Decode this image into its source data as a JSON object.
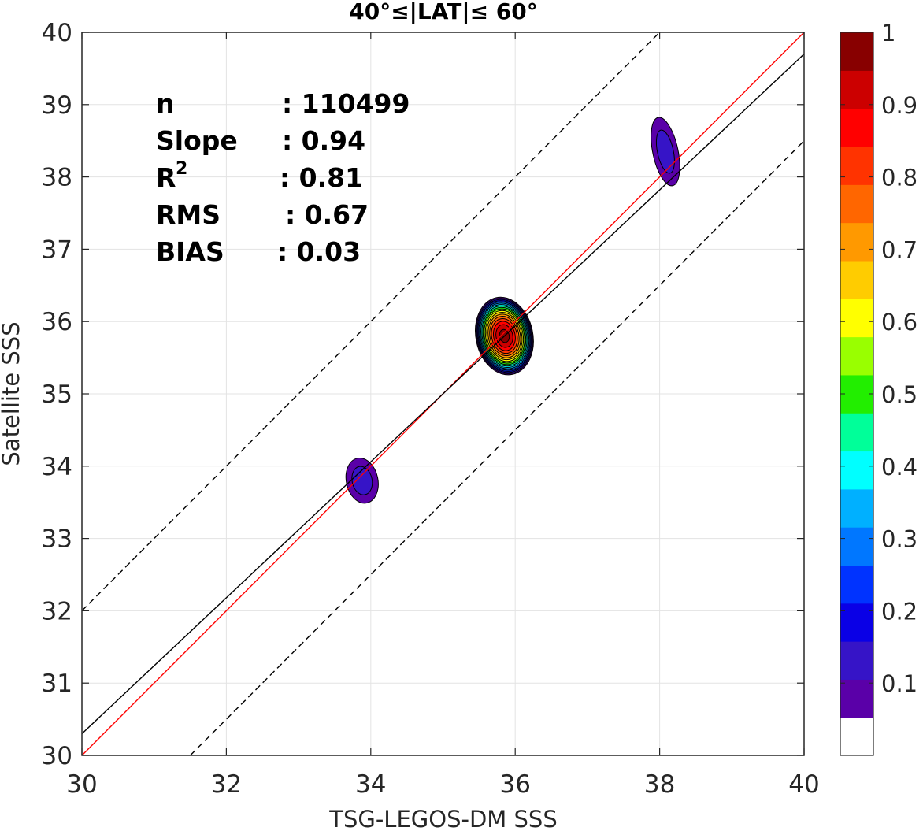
{
  "chart_data": {
    "type": "contour",
    "title": "40°≤|LAT|≤ 60°",
    "xlabel": "TSG-LEGOS-DM SSS",
    "ylabel": "Satellite SSS",
    "xlim": [
      30,
      40
    ],
    "ylim": [
      30,
      40
    ],
    "xticks": [
      "30",
      "32",
      "34",
      "36",
      "38",
      "40"
    ],
    "yticks": [
      "30",
      "31",
      "32",
      "33",
      "34",
      "35",
      "36",
      "37",
      "38",
      "39",
      "40"
    ],
    "grid": true,
    "stats": [
      {
        "label": "n",
        "value": ": 110499"
      },
      {
        "label": "Slope",
        "value": ": 0.94"
      },
      {
        "label": "R",
        "sup": "2",
        "value": ": 0.81"
      },
      {
        "label": "RMS",
        "value": ": 0.67"
      },
      {
        "label": "BIAS",
        "value": ": 0.03"
      }
    ],
    "lines": [
      {
        "name": "one-to-one",
        "color": "#ff0000",
        "style": "solid",
        "slope": 1.0,
        "intercept": 0.0
      },
      {
        "name": "regression",
        "color": "#000000",
        "style": "solid",
        "slope": 0.94,
        "intercept": 2.1
      },
      {
        "name": "upper-bound",
        "color": "#000000",
        "style": "dashed",
        "slope": 1.0,
        "intercept": 2.0
      },
      {
        "name": "lower-bound",
        "color": "#000000",
        "style": "dashed",
        "slope": 1.0,
        "intercept": -1.5
      }
    ],
    "density_blobs": [
      {
        "cx": 35.85,
        "cy": 35.8,
        "peak": 1.0,
        "rx": 0.4,
        "ry": 0.55
      },
      {
        "cx": 33.88,
        "cy": 33.8,
        "peak": 0.12,
        "rx": 0.25,
        "ry": 0.36
      },
      {
        "cx": 38.08,
        "cy": 38.35,
        "peak": 0.12,
        "rx": 0.2,
        "ry": 0.55
      }
    ],
    "colorbar": {
      "range": [
        0,
        1
      ],
      "ticks": [
        "0.1",
        "0.2",
        "0.3",
        "0.4",
        "0.5",
        "0.6",
        "0.7",
        "0.8",
        "0.9",
        "1"
      ],
      "colors": [
        "#ffffff",
        "#5a00a8",
        "#3614c7",
        "#0a00e6",
        "#0033ff",
        "#0077ff",
        "#00b0ff",
        "#00ffff",
        "#00ff99",
        "#22ee00",
        "#99ff00",
        "#ffff00",
        "#ffcc00",
        "#ff9900",
        "#ff6600",
        "#ff3300",
        "#ff0000",
        "#cc0000",
        "#880000"
      ]
    }
  }
}
